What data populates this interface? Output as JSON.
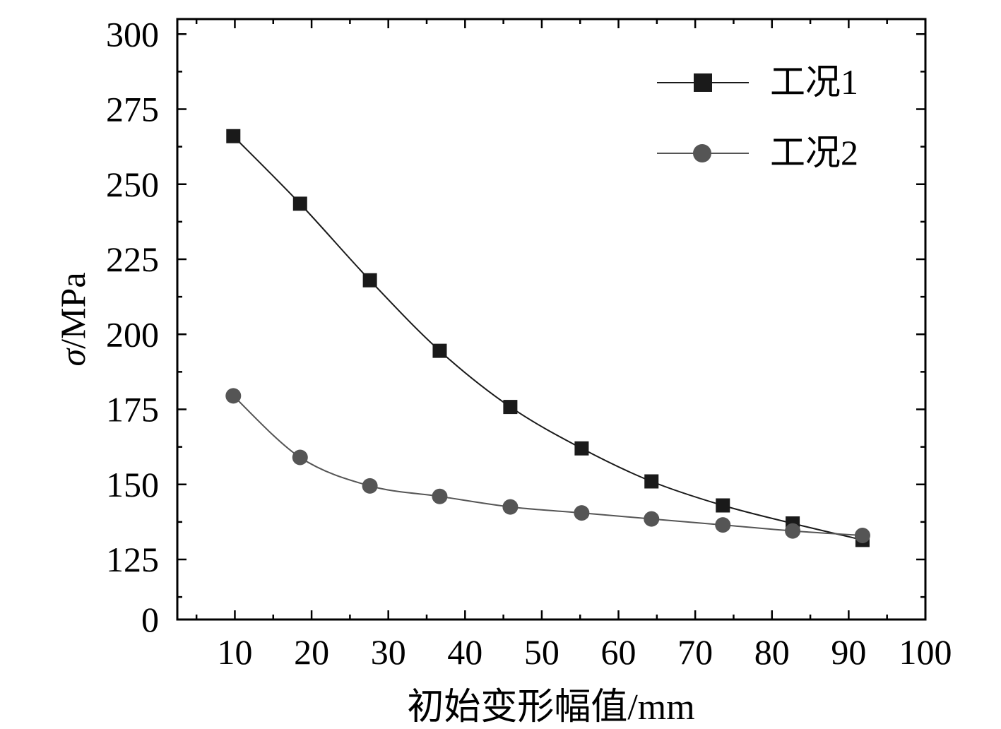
{
  "chart_data": {
    "type": "line",
    "xlabel": "初始变形幅值/mm",
    "ylabel_symbol": "σ",
    "ylabel_unit": "/MPa",
    "xlim": [
      2.5,
      100
    ],
    "x_ticks": [
      10,
      20,
      30,
      40,
      50,
      60,
      70,
      80,
      90,
      100
    ],
    "y_ticks": [
      0,
      125,
      150,
      175,
      200,
      225,
      250,
      275,
      300
    ],
    "y_axis_break": "0 shown at bottom, scale from 105 to 305 above",
    "x_minor_ticks": true,
    "y_minor_ticks": true,
    "grid": false,
    "legend_position": "top-right",
    "series": [
      {
        "name": "工况1",
        "marker": "square",
        "color": "#1a1a1a",
        "x": [
          9.8,
          18.5,
          27.6,
          36.7,
          45.9,
          55.2,
          64.3,
          73.6,
          82.7,
          91.8
        ],
        "y": [
          266,
          243.5,
          218,
          194.5,
          175.8,
          162,
          151,
          143,
          137,
          131.5
        ]
      },
      {
        "name": "工况2",
        "marker": "circle",
        "color": "#555555",
        "x": [
          9.8,
          18.5,
          27.6,
          36.7,
          45.9,
          55.2,
          64.3,
          73.6,
          82.7,
          91.8
        ],
        "y": [
          179.5,
          159,
          149.5,
          146,
          142.5,
          140.5,
          138.5,
          136.5,
          134.5,
          133
        ]
      }
    ]
  }
}
